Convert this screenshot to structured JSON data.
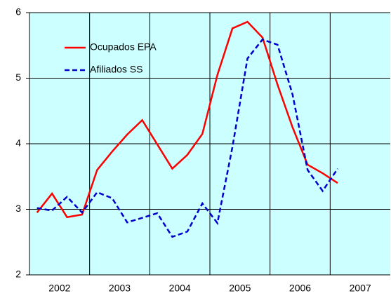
{
  "chart_data": {
    "type": "line",
    "x": [
      2002.125,
      2002.375,
      2002.625,
      2002.875,
      2003.125,
      2003.375,
      2003.625,
      2003.875,
      2004.125,
      2004.375,
      2004.625,
      2004.875,
      2005.125,
      2005.375,
      2005.625,
      2005.875,
      2006.125,
      2006.375,
      2006.625,
      2006.875,
      2007.125
    ],
    "series": [
      {
        "name": "Ocupados EPA",
        "color": "#ff0000",
        "dash": false,
        "values": [
          2.95,
          3.24,
          2.88,
          2.92,
          3.6,
          3.88,
          4.14,
          4.36,
          3.99,
          3.62,
          3.83,
          4.15,
          5.05,
          5.76,
          5.86,
          5.62,
          4.9,
          4.25,
          3.68,
          3.55,
          3.4
        ]
      },
      {
        "name": "Afiliados SS",
        "color": "#0000cc",
        "dash": true,
        "values": [
          3.02,
          2.98,
          3.19,
          2.95,
          3.26,
          3.17,
          2.8,
          2.87,
          2.94,
          2.58,
          2.66,
          3.09,
          2.79,
          3.95,
          5.3,
          5.59,
          5.51,
          4.75,
          3.6,
          3.28,
          3.62
        ]
      }
    ],
    "xlim": [
      2002,
      2008
    ],
    "xticks": [
      {
        "value": 2002.5,
        "label": "2002"
      },
      {
        "value": 2003.5,
        "label": "2003"
      },
      {
        "value": 2004.5,
        "label": "2004"
      },
      {
        "value": 2005.5,
        "label": "2005"
      },
      {
        "value": 2006.5,
        "label": "2006"
      },
      {
        "value": 2007.5,
        "label": "2007"
      }
    ],
    "ylim": [
      2,
      6
    ],
    "yticks": [
      2,
      3,
      4,
      5,
      6
    ],
    "grid": true,
    "plot_background": "#ccffff",
    "legend": "upper left"
  }
}
